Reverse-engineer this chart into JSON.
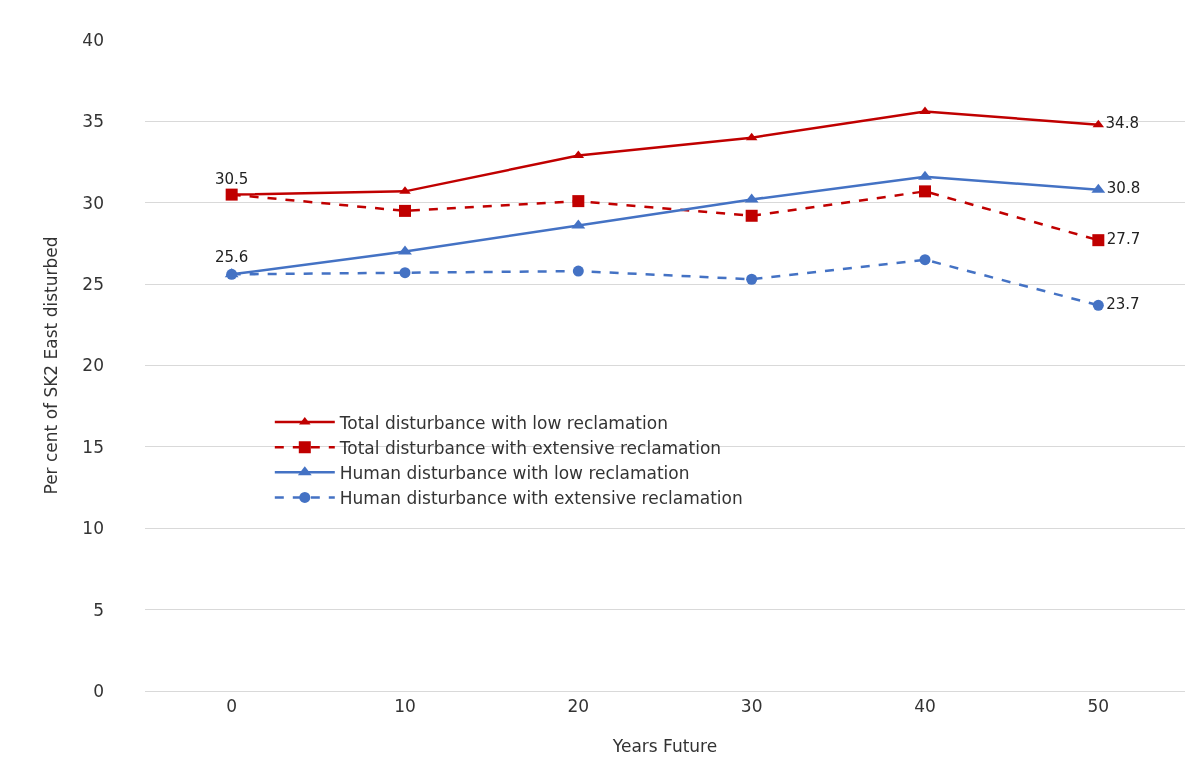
{
  "chart_data": {
    "type": "line",
    "xlabel": "Years Future",
    "ylabel": "Per cent of SK2 East disturbed",
    "x": [
      0,
      10,
      20,
      30,
      40,
      50
    ],
    "xlim": [
      -5,
      55
    ],
    "xticks": [
      0,
      10,
      20,
      30,
      40,
      50
    ],
    "ylim": [
      0,
      40
    ],
    "yticks": [
      0,
      5,
      10,
      15,
      20,
      25,
      30,
      35,
      40
    ],
    "grid": "y",
    "legend": "bottom",
    "series": [
      {
        "name": "Total disturbance with low reclamation",
        "color": "#c00000",
        "marker": "triangle",
        "line_style": "solid",
        "values": [
          30.5,
          30.7,
          32.9,
          34.0,
          35.6,
          34.8
        ],
        "value_labels": [
          "30.5",
          null,
          null,
          null,
          null,
          "34.8"
        ]
      },
      {
        "name": "Total disturbance with extensive reclamation",
        "color": "#c00000",
        "marker": "square",
        "line_style": "dashed",
        "values": [
          30.5,
          29.5,
          30.1,
          29.2,
          30.7,
          27.7
        ],
        "value_labels": [
          null,
          null,
          null,
          null,
          null,
          "27.7"
        ]
      },
      {
        "name": "Human disturbance with low reclamation",
        "color": "#4472c4",
        "marker": "triangle",
        "line_style": "solid",
        "values": [
          25.6,
          27.0,
          28.6,
          30.2,
          31.6,
          30.8
        ],
        "value_labels": [
          "25.6",
          null,
          null,
          null,
          null,
          "30.8"
        ]
      },
      {
        "name": "Human disturbance with extensive reclamation",
        "color": "#4472c4",
        "marker": "circle",
        "line_style": "dashed",
        "values": [
          25.6,
          25.7,
          25.8,
          25.3,
          26.5,
          23.7
        ],
        "value_labels": [
          null,
          null,
          null,
          null,
          null,
          "23.7"
        ]
      }
    ]
  }
}
